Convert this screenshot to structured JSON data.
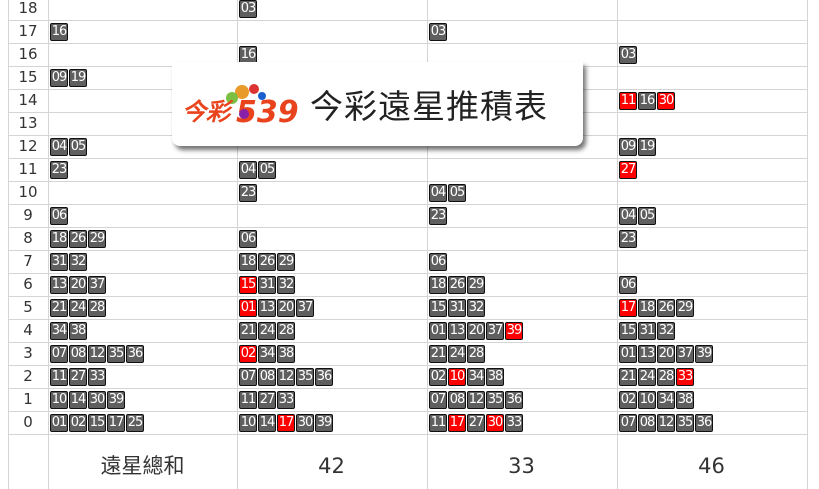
{
  "rows": [
    18,
    17,
    16,
    15,
    14,
    13,
    12,
    11,
    10,
    9,
    8,
    7,
    6,
    5,
    4,
    3,
    2,
    1,
    0
  ],
  "banner": {
    "title": "今彩遠星推積表",
    "logo_text": "今彩539"
  },
  "colors": {
    "chip": "#5f5f5f",
    "hot": "#ff0000"
  },
  "columns": [
    {
      "footer": "遠星總和",
      "cells": {
        "17": [
          [
            "16",
            0
          ]
        ],
        "15": [
          [
            "09",
            0
          ],
          [
            "19",
            0
          ]
        ],
        "12": [
          [
            "04",
            0
          ],
          [
            "05",
            0
          ]
        ],
        "11": [
          [
            "23",
            0
          ]
        ],
        "9": [
          [
            "06",
            0
          ]
        ],
        "8": [
          [
            "18",
            0
          ],
          [
            "26",
            0
          ],
          [
            "29",
            0
          ]
        ],
        "7": [
          [
            "31",
            0
          ],
          [
            "32",
            0
          ]
        ],
        "6": [
          [
            "13",
            0
          ],
          [
            "20",
            0
          ],
          [
            "37",
            0
          ]
        ],
        "5": [
          [
            "21",
            0
          ],
          [
            "24",
            0
          ],
          [
            "28",
            0
          ]
        ],
        "4": [
          [
            "34",
            0
          ],
          [
            "38",
            0
          ]
        ],
        "3": [
          [
            "07",
            0
          ],
          [
            "08",
            0
          ],
          [
            "12",
            0
          ],
          [
            "35",
            0
          ],
          [
            "36",
            0
          ]
        ],
        "2": [
          [
            "11",
            0
          ],
          [
            "27",
            0
          ],
          [
            "33",
            0
          ]
        ],
        "1": [
          [
            "10",
            0
          ],
          [
            "14",
            0
          ],
          [
            "30",
            0
          ],
          [
            "39",
            0
          ]
        ],
        "0": [
          [
            "01",
            0
          ],
          [
            "02",
            0
          ],
          [
            "15",
            0
          ],
          [
            "17",
            0
          ],
          [
            "25",
            0
          ]
        ]
      }
    },
    {
      "footer": "42",
      "cells": {
        "18": [
          [
            "03",
            0
          ]
        ],
        "16": [
          [
            "16",
            0
          ]
        ],
        "11": [
          [
            "04",
            0
          ],
          [
            "05",
            0
          ]
        ],
        "10": [
          [
            "23",
            0
          ]
        ],
        "8": [
          [
            "06",
            0
          ]
        ],
        "7": [
          [
            "18",
            0
          ],
          [
            "26",
            0
          ],
          [
            "29",
            0
          ]
        ],
        "6": [
          [
            "15",
            1
          ],
          [
            "31",
            0
          ],
          [
            "32",
            0
          ]
        ],
        "5": [
          [
            "01",
            1
          ],
          [
            "13",
            0
          ],
          [
            "20",
            0
          ],
          [
            "37",
            0
          ]
        ],
        "4": [
          [
            "21",
            0
          ],
          [
            "24",
            0
          ],
          [
            "28",
            0
          ]
        ],
        "3": [
          [
            "02",
            1
          ],
          [
            "34",
            0
          ],
          [
            "38",
            0
          ]
        ],
        "2": [
          [
            "07",
            0
          ],
          [
            "08",
            0
          ],
          [
            "12",
            0
          ],
          [
            "35",
            0
          ],
          [
            "36",
            0
          ]
        ],
        "1": [
          [
            "11",
            0
          ],
          [
            "27",
            0
          ],
          [
            "33",
            0
          ]
        ],
        "0": [
          [
            "10",
            0
          ],
          [
            "14",
            0
          ],
          [
            "17",
            1
          ],
          [
            "30",
            0
          ],
          [
            "39",
            0
          ]
        ]
      }
    },
    {
      "footer": "33",
      "cells": {
        "17": [
          [
            "03",
            0
          ]
        ],
        "10": [
          [
            "04",
            0
          ],
          [
            "05",
            0
          ]
        ],
        "9": [
          [
            "23",
            0
          ]
        ],
        "7": [
          [
            "06",
            0
          ]
        ],
        "6": [
          [
            "18",
            0
          ],
          [
            "26",
            0
          ],
          [
            "29",
            0
          ]
        ],
        "5": [
          [
            "15",
            0
          ],
          [
            "31",
            0
          ],
          [
            "32",
            0
          ]
        ],
        "4": [
          [
            "01",
            0
          ],
          [
            "13",
            0
          ],
          [
            "20",
            0
          ],
          [
            "37",
            0
          ],
          [
            "39",
            1
          ]
        ],
        "3": [
          [
            "21",
            0
          ],
          [
            "24",
            0
          ],
          [
            "28",
            0
          ]
        ],
        "2": [
          [
            "02",
            0
          ],
          [
            "10",
            1
          ],
          [
            "34",
            0
          ],
          [
            "38",
            0
          ]
        ],
        "1": [
          [
            "07",
            0
          ],
          [
            "08",
            0
          ],
          [
            "12",
            0
          ],
          [
            "35",
            0
          ],
          [
            "36",
            0
          ]
        ],
        "0": [
          [
            "11",
            0
          ],
          [
            "17",
            1
          ],
          [
            "27",
            0
          ],
          [
            "30",
            1
          ],
          [
            "33",
            0
          ]
        ]
      }
    },
    {
      "footer": "46",
      "cells": {
        "16": [
          [
            "03",
            0
          ]
        ],
        "14": [
          [
            "11",
            1
          ],
          [
            "16",
            0
          ],
          [
            "30",
            1
          ]
        ],
        "12": [
          [
            "09",
            0
          ],
          [
            "19",
            0
          ]
        ],
        "11": [
          [
            "27",
            1
          ]
        ],
        "9": [
          [
            "04",
            0
          ],
          [
            "05",
            0
          ]
        ],
        "8": [
          [
            "23",
            0
          ]
        ],
        "6": [
          [
            "06",
            0
          ]
        ],
        "5": [
          [
            "17",
            1
          ],
          [
            "18",
            0
          ],
          [
            "26",
            0
          ],
          [
            "29",
            0
          ]
        ],
        "4": [
          [
            "15",
            0
          ],
          [
            "31",
            0
          ],
          [
            "32",
            0
          ]
        ],
        "3": [
          [
            "01",
            0
          ],
          [
            "13",
            0
          ],
          [
            "20",
            0
          ],
          [
            "37",
            0
          ],
          [
            "39",
            0
          ]
        ],
        "2": [
          [
            "21",
            0
          ],
          [
            "24",
            0
          ],
          [
            "28",
            0
          ],
          [
            "33",
            1
          ]
        ],
        "1": [
          [
            "02",
            0
          ],
          [
            "10",
            0
          ],
          [
            "34",
            0
          ],
          [
            "38",
            0
          ]
        ],
        "0": [
          [
            "07",
            0
          ],
          [
            "08",
            0
          ],
          [
            "12",
            0
          ],
          [
            "35",
            0
          ],
          [
            "36",
            0
          ]
        ]
      }
    }
  ]
}
